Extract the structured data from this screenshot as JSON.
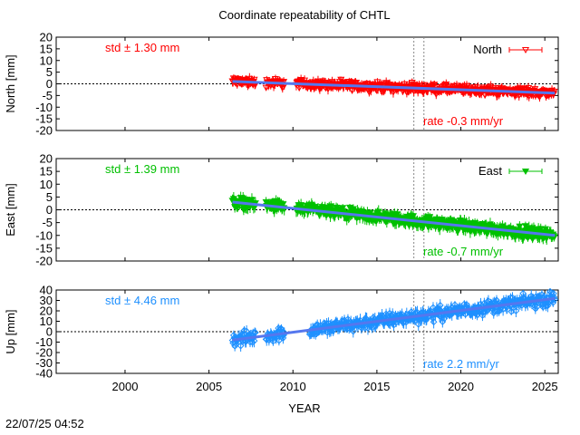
{
  "chart_data": {
    "title": "Coordinate repeatability of CHTL",
    "xlabel": "YEAR",
    "x_ticks": [
      2000,
      2005,
      2010,
      2015,
      2020,
      2025
    ],
    "xlim": [
      1995.9,
      2025.8
    ],
    "vertical_markers": [
      2017.2,
      2017.8
    ],
    "timestamp": "22/07/25 04:52",
    "panels": [
      {
        "type": "scatter",
        "name": "North",
        "ylabel": "North [mm]",
        "ylim": [
          -20,
          20
        ],
        "y_ticks": [
          20,
          15,
          10,
          5,
          0,
          -5,
          -10,
          -15,
          -20
        ],
        "color": "#ff0000",
        "marker": "open-down-triangle",
        "std_label": "std ± 1.30 mm",
        "rate_label": "rate -0.3 mm/yr",
        "segments": [
          [
            2006.4,
            2007.8
          ],
          [
            2008.4,
            2009.5
          ],
          [
            2010.2,
            2025.6
          ]
        ],
        "trend": [
          [
            2006.4,
            1.0
          ],
          [
            2025.6,
            -4.0
          ]
        ],
        "scatter": 1.3,
        "error_bar": 1.8
      },
      {
        "type": "scatter",
        "name": "East",
        "ylabel": "East [mm]",
        "ylim": [
          -20,
          20
        ],
        "y_ticks": [
          20,
          15,
          10,
          5,
          0,
          -5,
          -10,
          -15,
          -20
        ],
        "color": "#00c000",
        "marker": "filled-down-triangle",
        "std_label": "std ± 1.39 mm",
        "rate_label": "rate -0.7 mm/yr",
        "segments": [
          [
            2006.4,
            2007.8
          ],
          [
            2008.4,
            2009.5
          ],
          [
            2010.2,
            2025.6
          ]
        ],
        "trend": [
          [
            2006.4,
            3.0
          ],
          [
            2025.6,
            -10.0
          ]
        ],
        "scatter": 1.5,
        "error_bar": 2.0
      },
      {
        "type": "scatter",
        "name": "Up",
        "ylabel": "Up [mm]",
        "ylim": [
          -40,
          40
        ],
        "y_ticks": [
          40,
          30,
          20,
          10,
          0,
          -10,
          -20,
          -30,
          -40
        ],
        "color": "#1e90ff",
        "marker": "open-diamond",
        "std_label": "std ± 4.46 mm",
        "rate_label": "rate  2.2 mm/yr",
        "segments": [
          [
            2006.4,
            2007.8
          ],
          [
            2008.4,
            2009.5
          ],
          [
            2011.0,
            2025.6
          ]
        ],
        "trend": [
          [
            2006.4,
            -8.0
          ],
          [
            2025.6,
            32.0
          ]
        ],
        "scatter": 4.5,
        "error_bar": 5.0
      }
    ]
  }
}
